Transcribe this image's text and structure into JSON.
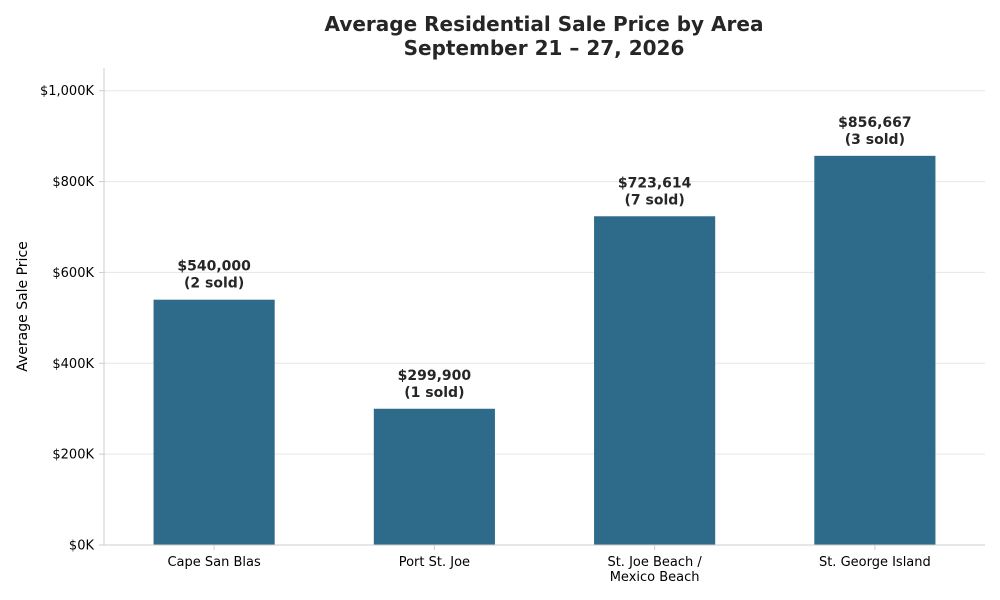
{
  "chart_data": {
    "type": "bar",
    "title_lines": [
      "Average Residential Sale Price by Area",
      "September 21 – 27, 2026"
    ],
    "xlabel": "",
    "ylabel": "Average Sale Price",
    "categories": [
      [
        "Cape San Blas"
      ],
      [
        "Port St. Joe"
      ],
      [
        "St. Joe Beach /",
        "Mexico Beach"
      ],
      [
        "St. George Island"
      ]
    ],
    "values": [
      540000,
      299900,
      723614,
      856667
    ],
    "data_labels": [
      [
        "$540,000",
        "(2 sold)"
      ],
      [
        "$299,900",
        "(1 sold)"
      ],
      [
        "$723,614",
        "(7 sold)"
      ],
      [
        "$856,667",
        "(3 sold)"
      ]
    ],
    "ylim": [
      0,
      1050000
    ],
    "y_ticks": [
      0,
      200000,
      400000,
      600000,
      800000,
      1000000
    ],
    "y_tick_labels": [
      "$0K",
      "$200K",
      "$400K",
      "$600K",
      "$800K",
      "$1,000K"
    ],
    "grid": true,
    "legend": "none",
    "colors": {
      "bar": "#2e6b8a",
      "grid": "#e6e6e6",
      "axis": "#cccccc",
      "title": "#262626",
      "label": "#262626"
    }
  }
}
